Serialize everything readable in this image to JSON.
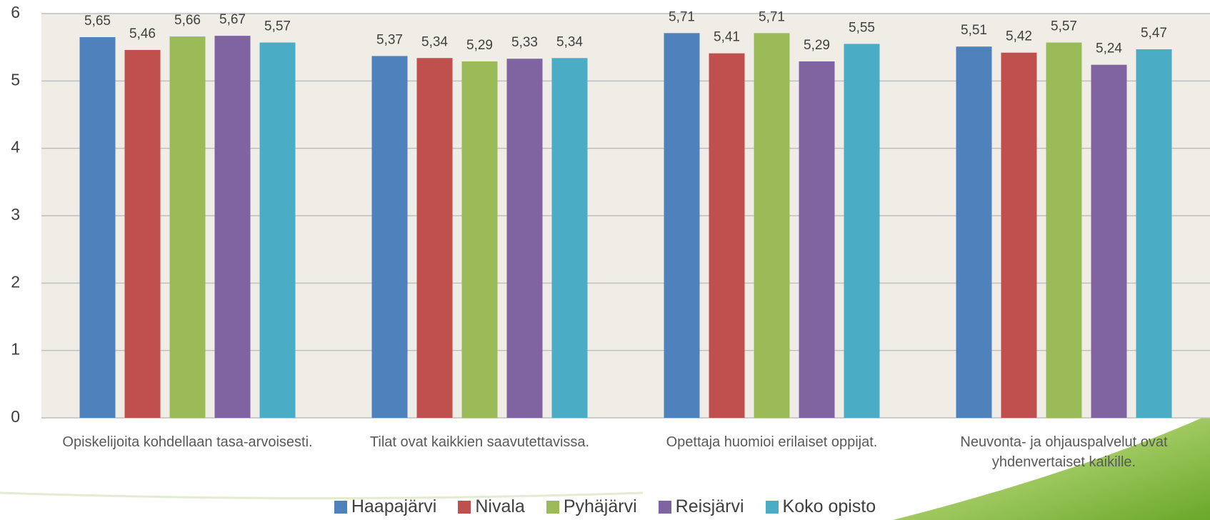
{
  "chart_data": {
    "type": "bar",
    "categories": [
      "Opiskelijoita kohdellaan tasa-arvoisesti.",
      "Tilat ovat kaikkien saavutettavissa.",
      "Opettaja huomioi erilaiset oppijat.",
      "Neuvonta- ja ohjauspalvelut ovat yhdenvertaiset kaikille."
    ],
    "series": [
      {
        "name": "Haapajärvi",
        "color": "#4f81bd",
        "values": [
          5.65,
          5.37,
          5.71,
          5.51
        ],
        "value_labels": [
          "5,65",
          "5,37",
          "5,71",
          "5,51"
        ]
      },
      {
        "name": "Nivala",
        "color": "#c0504d",
        "values": [
          5.46,
          5.34,
          5.41,
          5.42
        ],
        "value_labels": [
          "5,46",
          "5,34",
          "5,41",
          "5,42"
        ]
      },
      {
        "name": "Pyhäjärvi",
        "color": "#9bbb59",
        "values": [
          5.66,
          5.29,
          5.71,
          5.57
        ],
        "value_labels": [
          "5,66",
          "5,29",
          "5,71",
          "5,57"
        ]
      },
      {
        "name": "Reisjärvi",
        "color": "#8064a2",
        "values": [
          5.67,
          5.33,
          5.29,
          5.24
        ],
        "value_labels": [
          "5,67",
          "5,33",
          "5,29",
          "5,24"
        ]
      },
      {
        "name": "Koko opisto",
        "color": "#4bacc6",
        "values": [
          5.57,
          5.34,
          5.55,
          5.47
        ],
        "value_labels": [
          "5,57",
          "5,34",
          "5,55",
          "5,47"
        ]
      }
    ],
    "ylim": [
      0,
      6
    ],
    "yticks": [
      0,
      1,
      2,
      3,
      4,
      5,
      6
    ],
    "grid": true,
    "legend": "bottom"
  }
}
